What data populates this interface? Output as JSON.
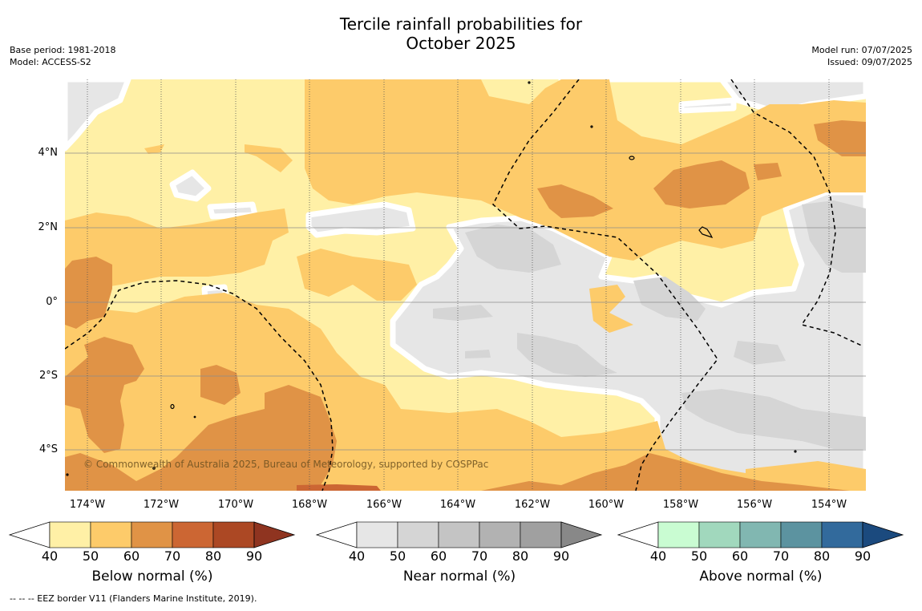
{
  "title": {
    "line1": "Tercile rainfall probabilities for",
    "line2": "October 2025"
  },
  "meta_left": {
    "base_period": "Base period: 1981-2018",
    "model": "Model: ACCESS-S2"
  },
  "meta_right": {
    "model_run": "Model run: 07/07/2025",
    "issued": "Issued: 09/07/2025"
  },
  "map": {
    "lat_labels": [
      "4°N",
      "2°N",
      "0°",
      "2°S",
      "4°S"
    ],
    "lon_labels": [
      "174°W",
      "172°W",
      "170°W",
      "168°W",
      "166°W",
      "164°W",
      "162°W",
      "160°W",
      "158°W",
      "156°W",
      "154°W"
    ],
    "copyright": "© Commonwealth of Australia 2025, Bureau of Meteorology, supported by COSPPac"
  },
  "colorbars": [
    {
      "title": "Below normal (%)",
      "ticks": [
        "40",
        "50",
        "60",
        "70",
        "80",
        "90"
      ],
      "colors": [
        "#fff0a6",
        "#fdcb6a",
        "#e09346",
        "#cc6633",
        "#ac4824",
        "#8f3420"
      ]
    },
    {
      "title": "Near normal (%)",
      "ticks": [
        "40",
        "50",
        "60",
        "70",
        "80",
        "90"
      ],
      "colors": [
        "#e6e6e6",
        "#d5d5d5",
        "#c4c4c4",
        "#b2b2b2",
        "#a0a0a0",
        "#888888"
      ]
    },
    {
      "title": "Above normal (%)",
      "ticks": [
        "40",
        "50",
        "60",
        "70",
        "80",
        "90"
      ],
      "colors": [
        "#c9fcd2",
        "#a1d8bd",
        "#81b7b1",
        "#5c93a0",
        "#326a9c",
        "#1b4a7e"
      ]
    }
  ],
  "footnote": "-- -- -- EEZ border V11 (Flanders Marine Institute, 2019)."
}
